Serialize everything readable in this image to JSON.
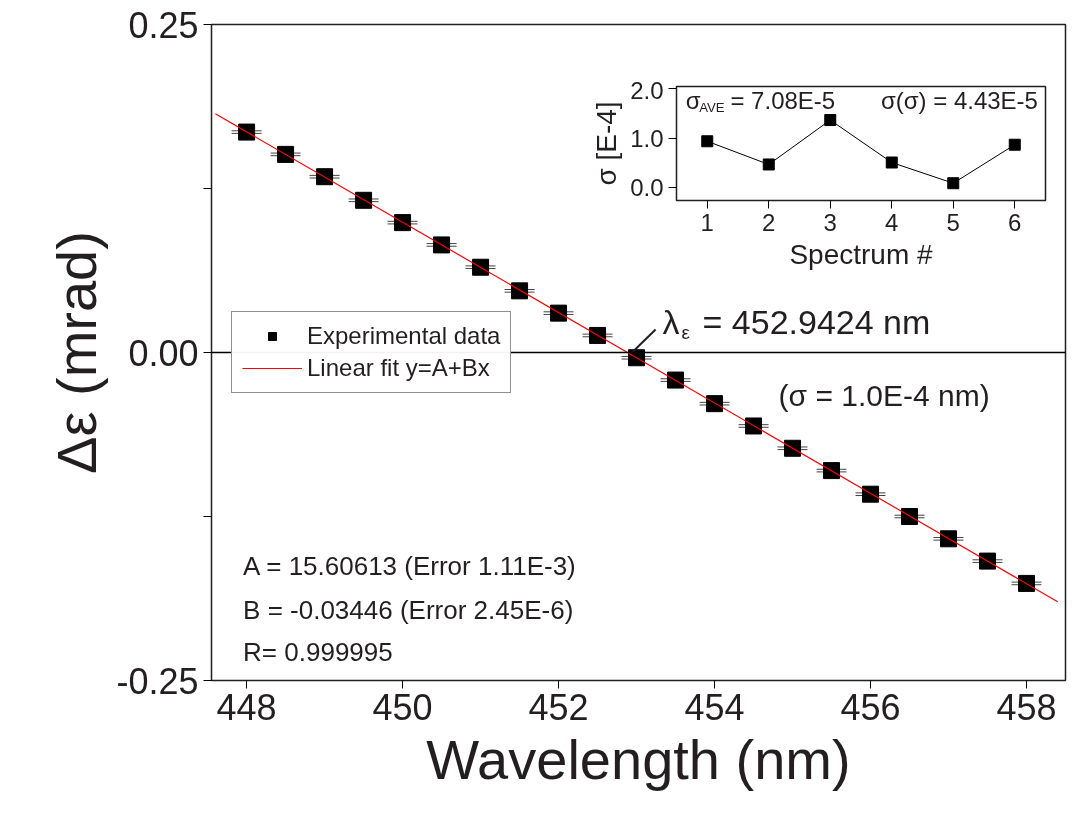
{
  "chart_data": [
    {
      "type": "scatter",
      "xlabel": "Wavelength (nm)",
      "ylabel": "Δε (mrad)",
      "xlim": [
        447.55,
        458.5
      ],
      "ylim": [
        -0.25,
        0.25
      ],
      "xticks": [
        448,
        450,
        452,
        454,
        456,
        458
      ],
      "yticks": [
        {
          "value": -0.25,
          "label": "-0.25"
        },
        {
          "value": -0.125,
          "label": null
        },
        {
          "value": 0,
          "label": "0.00"
        },
        {
          "value": 0.125,
          "label": null
        },
        {
          "value": 0.25,
          "label": "0.25"
        }
      ],
      "grid": false,
      "legend": "left",
      "ref_lines": [
        {
          "axis": "y",
          "value": 0,
          "color": "#000000"
        }
      ],
      "annotations": [
        {
          "text": "λ$_{ε}$ = 452.9424 nm",
          "x": 452.9424,
          "y": 0
        },
        "(σ = 1.0E-4 nm)",
        "A = 15.60613 (Error 1.11E-3)",
        "B = -0.03446 (Error 2.45E-6)",
        "R= 0.999995"
      ],
      "series": [
        {
          "name": "Experimental data",
          "type": "scatter",
          "marker": "square",
          "color": "#000000",
          "x": [
            448,
            448.5,
            449,
            449.5,
            450,
            450.5,
            451,
            451.5,
            452,
            452.5,
            453,
            453.5,
            454,
            454.5,
            455,
            455.5,
            456,
            456.5,
            457,
            457.5,
            458
          ],
          "values": [
            0.168,
            0.151,
            0.134,
            0.116,
            0.099,
            0.082,
            0.065,
            0.047,
            0.03,
            0.013,
            -0.004,
            -0.021,
            -0.039,
            -0.056,
            -0.073,
            -0.09,
            -0.108,
            -0.125,
            -0.142,
            -0.159,
            -0.176
          ],
          "errors": [
            0.001,
            0.001,
            0.001,
            0.001,
            0.001,
            0.001,
            0.001,
            0.001,
            0.001,
            0.001,
            0.001,
            0.001,
            0.001,
            0.001,
            0.001,
            0.001,
            0.001,
            0.001,
            0.001,
            0.001,
            0.001
          ]
        },
        {
          "name": "Linear fit y=A+Bx",
          "type": "line",
          "color": "#ff0000",
          "x": [
            447.6,
            458.4
          ],
          "values": [
            0.182,
            -0.19
          ]
        }
      ]
    },
    {
      "type": "line",
      "marker": "square",
      "xlabel": "Spectrum #",
      "ylabel": "σ [E-4]",
      "xlim": [
        0.5,
        6.5
      ],
      "ylim": [
        -0.26,
        2.05
      ],
      "xticks": [
        1,
        2,
        3,
        4,
        5,
        6
      ],
      "yticks": [
        {
          "value": 0,
          "label": "0.0"
        },
        {
          "value": 1,
          "label": "1.0"
        },
        {
          "value": 2,
          "label": "2.0"
        }
      ],
      "grid": false,
      "legend": false,
      "annotations": [
        "σ$_{AVE}$ = 7.08E-5",
        "σ(σ) = 4.43E-5"
      ],
      "x": [
        1,
        2,
        3,
        4,
        5,
        6
      ],
      "series": [
        {
          "color": "#000000",
          "values": [
            0.94,
            0.47,
            1.37,
            0.51,
            0.09,
            0.87
          ]
        }
      ]
    }
  ]
}
